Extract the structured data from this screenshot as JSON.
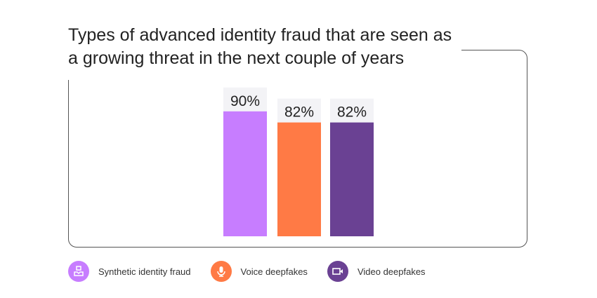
{
  "chart_data": {
    "type": "bar",
    "title": "Types of advanced identity fraud that are seen as a growing threat in the next couple of years",
    "categories": [
      "Synthetic identity fraud",
      "Voice deepfakes",
      "Video deepfakes"
    ],
    "values": [
      90,
      82,
      82
    ],
    "data_labels": [
      "90%",
      "82%",
      "82%"
    ],
    "ylim": [
      0,
      100
    ],
    "grid": false,
    "legend_placement": "bottom",
    "colors": [
      "#c77dff",
      "#ff7a45",
      "#6a4193"
    ],
    "icons": [
      "user-id-icon",
      "microphone-icon",
      "video-camera-icon"
    ]
  }
}
